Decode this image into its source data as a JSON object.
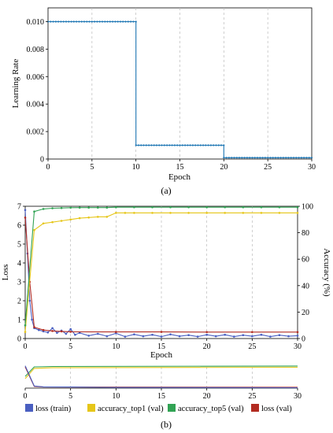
{
  "panel_a_label": "(a)",
  "panel_b_label": "(b)",
  "legend": [
    {
      "label": "loss (train)",
      "color": "#4a5fc1"
    },
    {
      "label": "accuracy_top1 (val)",
      "color": "#e6c619"
    },
    {
      "label": "accuracy_top5 (val)",
      "color": "#31a354"
    },
    {
      "label": "loss (val)",
      "color": "#b22b21"
    }
  ],
  "chart_data": [
    {
      "type": "line",
      "xlabel": "Epoch",
      "ylabel": "Learning Rate",
      "xlim": [
        0,
        30
      ],
      "ylim": [
        0,
        0.011
      ],
      "xticks": [
        "0",
        "5",
        "10",
        "15",
        "20",
        "25",
        "30"
      ],
      "yticks": [
        "0",
        "0.002",
        "0.004",
        "0.006",
        "0.008",
        "0.010"
      ],
      "grid": "vertical dashed",
      "series": [
        {
          "color": "#1f77b4",
          "x": [
            0,
            10,
            10,
            20,
            20,
            30
          ],
          "y": [
            0.01,
            0.01,
            0.001,
            0.001,
            0.0001,
            0.0001
          ]
        }
      ]
    },
    {
      "type": "line",
      "xlabel": "Epoch",
      "ylabel": "Loss",
      "y2label": "Accuracy (%)",
      "xlim": [
        0,
        30
      ],
      "ylim": [
        0,
        7
      ],
      "y2lim": [
        0,
        100
      ],
      "xticks": [
        "0",
        "5",
        "10",
        "15",
        "20",
        "25",
        "30"
      ],
      "yticks": [
        "0",
        "1",
        "2",
        "3",
        "4",
        "5",
        "6",
        "7"
      ],
      "y2ticks": [
        "0",
        "20",
        "40",
        "60",
        "80",
        "100"
      ],
      "grid": "vertical dashed",
      "legend_position": "bottom",
      "series": [
        {
          "name": "loss (train)",
          "axis": "left",
          "color": "#4a5fc1",
          "x": [
            0,
            0.25,
            0.5,
            0.75,
            1,
            1.5,
            2,
            2.5,
            3,
            3.5,
            4,
            4.5,
            5,
            5.5,
            6,
            7,
            8,
            9,
            10,
            11,
            12,
            13,
            14,
            15,
            16,
            17,
            18,
            19,
            20,
            21,
            22,
            23,
            24,
            25,
            26,
            27,
            28,
            29,
            30
          ],
          "y": [
            6.8,
            4.5,
            2.0,
            1.0,
            0.55,
            0.45,
            0.38,
            0.32,
            0.55,
            0.3,
            0.42,
            0.25,
            0.5,
            0.2,
            0.3,
            0.15,
            0.25,
            0.12,
            0.28,
            0.1,
            0.22,
            0.12,
            0.2,
            0.1,
            0.22,
            0.12,
            0.18,
            0.1,
            0.2,
            0.12,
            0.2,
            0.1,
            0.18,
            0.12,
            0.2,
            0.1,
            0.18,
            0.12,
            0.15
          ]
        },
        {
          "name": "loss (val)",
          "axis": "left",
          "color": "#b22b21",
          "x": [
            0,
            0.5,
            1,
            2,
            3,
            4,
            5,
            10,
            15,
            20,
            25,
            30
          ],
          "y": [
            6.4,
            3.0,
            0.6,
            0.45,
            0.4,
            0.38,
            0.36,
            0.35,
            0.35,
            0.34,
            0.34,
            0.34
          ]
        },
        {
          "name": "accuracy_top1 (val)",
          "axis": "right",
          "color": "#e6c619",
          "x": [
            0,
            1,
            2,
            3,
            4,
            5,
            6,
            7,
            8,
            9,
            10,
            11,
            12,
            14,
            16,
            18,
            20,
            22,
            24,
            26,
            28,
            30
          ],
          "y": [
            5,
            82,
            87,
            88,
            89,
            90,
            91,
            91.5,
            92,
            92,
            95,
            95,
            95,
            95,
            95,
            95,
            95,
            95,
            95,
            95,
            95,
            95
          ]
        },
        {
          "name": "accuracy_top5 (val)",
          "axis": "right",
          "color": "#31a354",
          "x": [
            0,
            1,
            2,
            3,
            4,
            5,
            6,
            7,
            8,
            9,
            10,
            12,
            14,
            16,
            18,
            20,
            22,
            24,
            26,
            28,
            30
          ],
          "y": [
            10,
            96,
            98,
            98.5,
            98.7,
            98.9,
            99,
            99,
            99,
            99,
            99.3,
            99.3,
            99.3,
            99.3,
            99.3,
            99.3,
            99.3,
            99.3,
            99.3,
            99.3,
            99.3
          ]
        }
      ]
    },
    {
      "type": "line",
      "xlim": [
        0,
        30
      ],
      "xticks": [
        "0",
        "5",
        "10",
        "15",
        "20",
        "25",
        "30"
      ],
      "grid": "vertical dashed",
      "series": [
        {
          "name": "accuracy_top5 (val)",
          "color": "#31a354",
          "x": [
            0,
            1,
            3,
            30
          ],
          "y": [
            0.55,
            1.0,
            1.02,
            1.04
          ]
        },
        {
          "name": "accuracy_top1 (val)",
          "color": "#e6c619",
          "x": [
            0,
            1,
            3,
            30
          ],
          "y": [
            0.45,
            0.93,
            0.96,
            0.98
          ]
        },
        {
          "name": "loss (val)",
          "color": "#b22b21",
          "x": [
            0,
            1,
            2,
            30
          ],
          "y": [
            1.0,
            0.08,
            0.05,
            0.04
          ]
        },
        {
          "name": "loss (train)",
          "color": "#4a5fc1",
          "x": [
            0,
            1,
            2,
            5,
            10,
            30
          ],
          "y": [
            1.05,
            0.1,
            0.06,
            0.05,
            0.03,
            0.02
          ]
        }
      ]
    }
  ]
}
